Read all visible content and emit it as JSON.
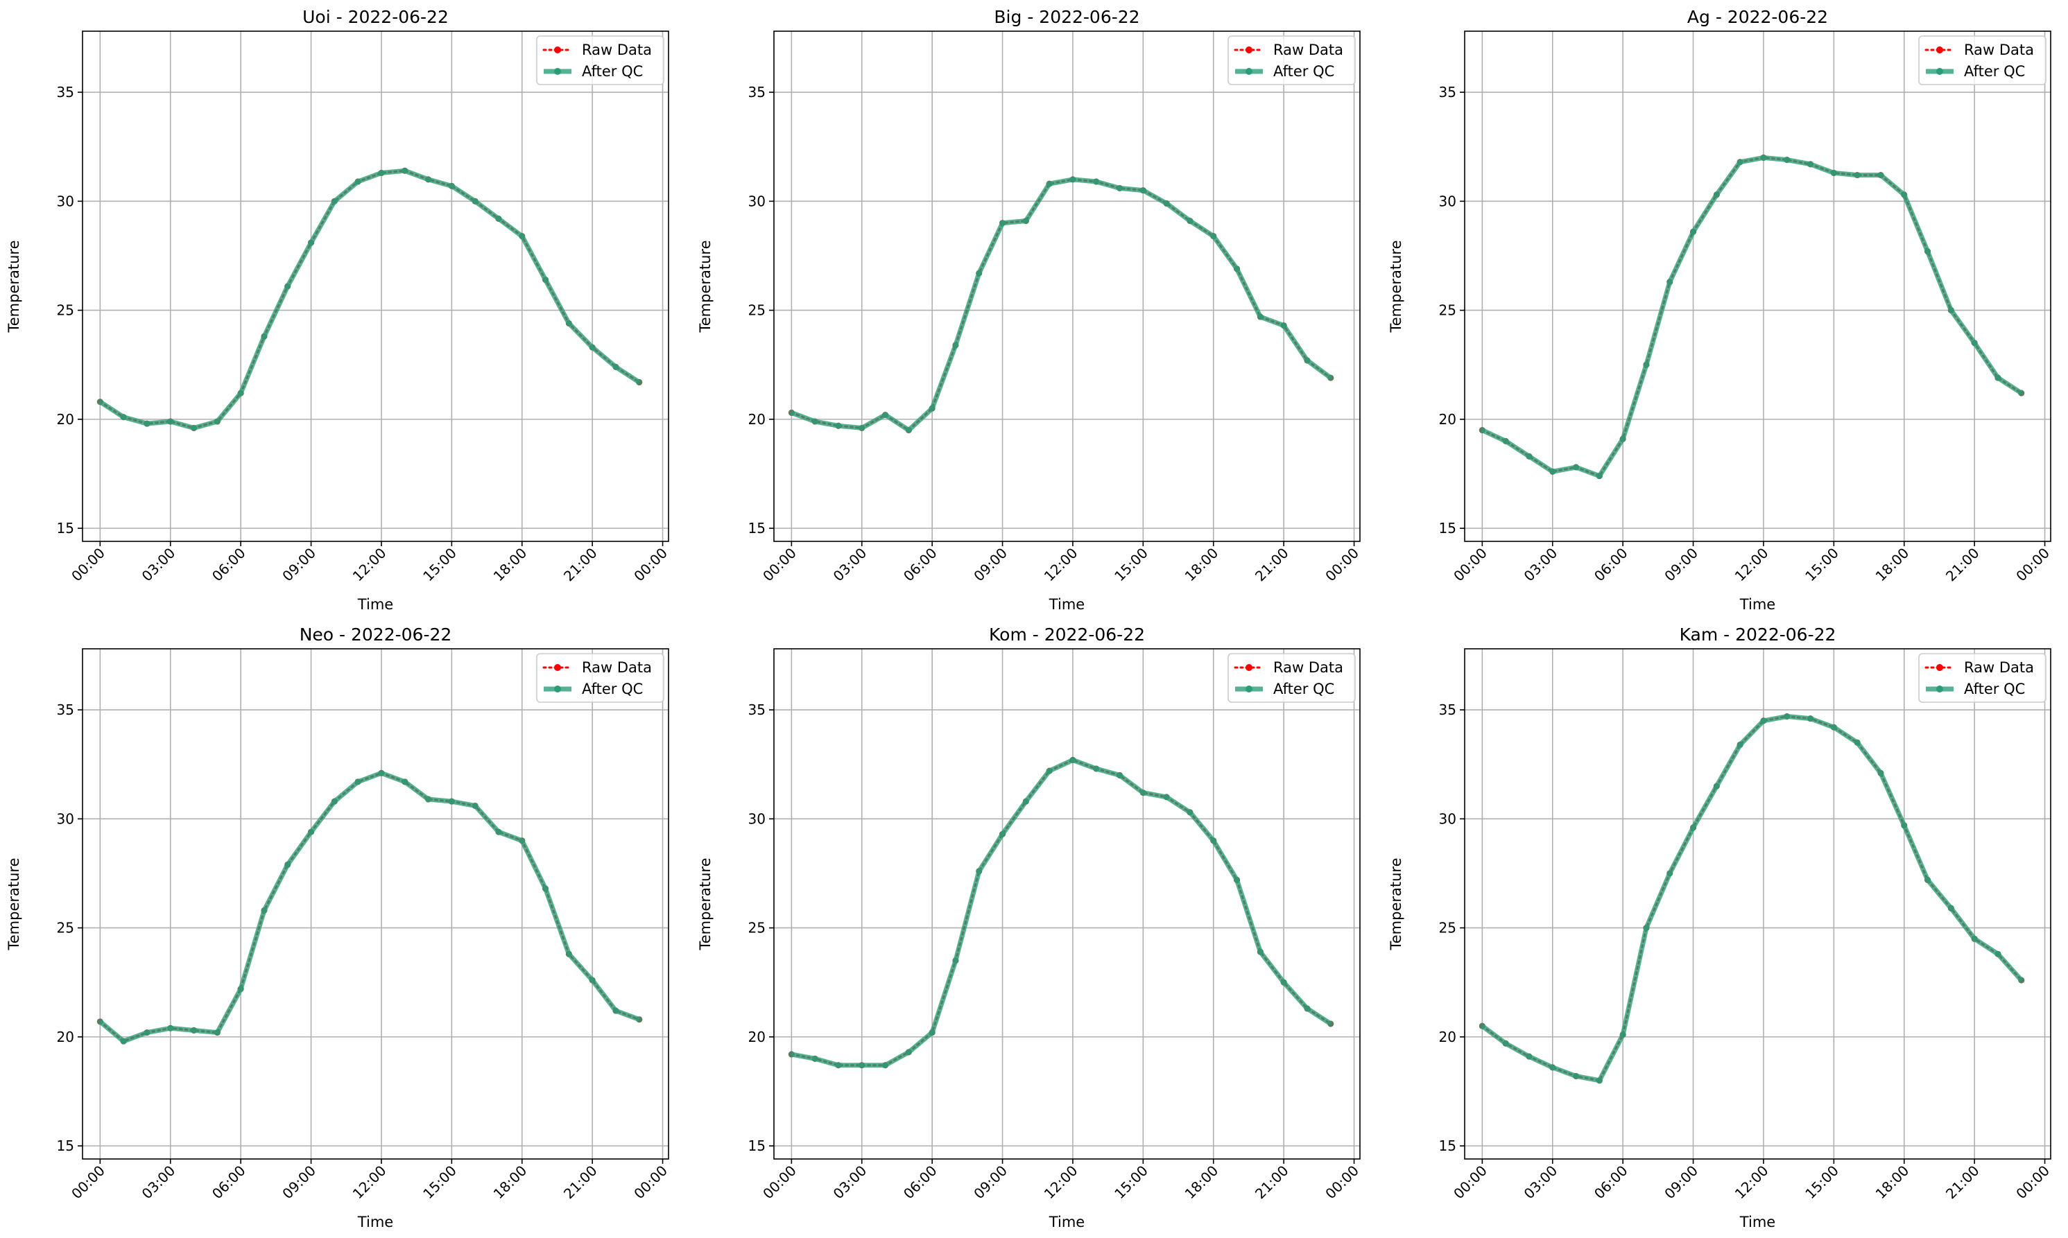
{
  "chart_data": [
    {
      "type": "line",
      "title": "Uoi - 2022-06-22",
      "xlabel": "Time",
      "ylabel": "Temperature",
      "ylim": [
        14.4,
        37.8
      ],
      "yticks": [
        15,
        20,
        25,
        30,
        35
      ],
      "xlim": [
        -0.75,
        24.25
      ],
      "xticks": [
        0,
        3,
        6,
        9,
        12,
        15,
        18,
        21,
        24
      ],
      "xtick_labels": [
        "00:00",
        "03:00",
        "06:00",
        "09:00",
        "12:00",
        "15:00",
        "18:00",
        "21:00",
        "00:00"
      ],
      "grid": true,
      "legend_position": "top-right",
      "x": [
        0,
        1,
        2,
        3,
        4,
        5,
        6,
        7,
        8,
        9,
        10,
        11,
        12,
        13,
        14,
        15,
        16,
        17,
        18,
        19,
        20,
        21,
        22,
        23
      ],
      "series": [
        {
          "name": "Raw Data",
          "color": "#ff0000",
          "style": "dotted-markers",
          "values": [
            20.8,
            20.1,
            19.8,
            19.9,
            19.6,
            19.9,
            21.2,
            23.8,
            26.1,
            28.1,
            30.0,
            30.9,
            31.3,
            31.4,
            31.0,
            30.7,
            30.0,
            29.2,
            28.4,
            26.4,
            24.4,
            23.3,
            22.4,
            21.7
          ]
        },
        {
          "name": "After QC",
          "color": "#2a9d78",
          "style": "solid-markers",
          "values": [
            20.8,
            20.1,
            19.8,
            19.9,
            19.6,
            19.9,
            21.2,
            23.8,
            26.1,
            28.1,
            30.0,
            30.9,
            31.3,
            31.4,
            31.0,
            30.7,
            30.0,
            29.2,
            28.4,
            26.4,
            24.4,
            23.3,
            22.4,
            21.7
          ]
        }
      ]
    },
    {
      "type": "line",
      "title": "Big - 2022-06-22",
      "xlabel": "Time",
      "ylabel": "Temperature",
      "ylim": [
        14.4,
        37.8
      ],
      "yticks": [
        15,
        20,
        25,
        30,
        35
      ],
      "xlim": [
        -0.75,
        24.25
      ],
      "xticks": [
        0,
        3,
        6,
        9,
        12,
        15,
        18,
        21,
        24
      ],
      "xtick_labels": [
        "00:00",
        "03:00",
        "06:00",
        "09:00",
        "12:00",
        "15:00",
        "18:00",
        "21:00",
        "00:00"
      ],
      "grid": true,
      "legend_position": "top-right",
      "x": [
        0,
        1,
        2,
        3,
        4,
        5,
        6,
        7,
        8,
        9,
        10,
        11,
        12,
        13,
        14,
        15,
        16,
        17,
        18,
        19,
        20,
        21,
        22,
        23
      ],
      "series": [
        {
          "name": "Raw Data",
          "color": "#ff0000",
          "style": "dotted-markers",
          "values": [
            20.3,
            19.9,
            19.7,
            19.6,
            20.2,
            19.5,
            20.5,
            23.4,
            26.7,
            29.0,
            29.1,
            30.8,
            31.0,
            30.9,
            30.6,
            30.5,
            29.9,
            29.1,
            28.4,
            26.9,
            24.7,
            24.3,
            22.7,
            21.9
          ]
        },
        {
          "name": "After QC",
          "color": "#2a9d78",
          "style": "solid-markers",
          "values": [
            20.3,
            19.9,
            19.7,
            19.6,
            20.2,
            19.5,
            20.5,
            23.4,
            26.7,
            29.0,
            29.1,
            30.8,
            31.0,
            30.9,
            30.6,
            30.5,
            29.9,
            29.1,
            28.4,
            26.9,
            24.7,
            24.3,
            22.7,
            21.9
          ]
        }
      ]
    },
    {
      "type": "line",
      "title": "Ag - 2022-06-22",
      "xlabel": "Time",
      "ylabel": "Temperature",
      "ylim": [
        14.4,
        37.8
      ],
      "yticks": [
        15,
        20,
        25,
        30,
        35
      ],
      "xlim": [
        -0.75,
        24.25
      ],
      "xticks": [
        0,
        3,
        6,
        9,
        12,
        15,
        18,
        21,
        24
      ],
      "xtick_labels": [
        "00:00",
        "03:00",
        "06:00",
        "09:00",
        "12:00",
        "15:00",
        "18:00",
        "21:00",
        "00:00"
      ],
      "grid": true,
      "legend_position": "top-right",
      "x": [
        0,
        1,
        2,
        3,
        4,
        5,
        6,
        7,
        8,
        9,
        10,
        11,
        12,
        13,
        14,
        15,
        16,
        17,
        18,
        19,
        20,
        21,
        22,
        23
      ],
      "series": [
        {
          "name": "Raw Data",
          "color": "#ff0000",
          "style": "dotted-markers",
          "values": [
            19.5,
            19.0,
            18.3,
            17.6,
            17.8,
            17.4,
            19.1,
            22.5,
            26.3,
            28.6,
            30.3,
            31.8,
            32.0,
            31.9,
            31.7,
            31.3,
            31.2,
            31.2,
            30.3,
            27.7,
            25.0,
            23.5,
            21.9,
            21.2
          ]
        },
        {
          "name": "After QC",
          "color": "#2a9d78",
          "style": "solid-markers",
          "values": [
            19.5,
            19.0,
            18.3,
            17.6,
            17.8,
            17.4,
            19.1,
            22.5,
            26.3,
            28.6,
            30.3,
            31.8,
            32.0,
            31.9,
            31.7,
            31.3,
            31.2,
            31.2,
            30.3,
            27.7,
            25.0,
            23.5,
            21.9,
            21.2
          ]
        }
      ]
    },
    {
      "type": "line",
      "title": "Neo - 2022-06-22",
      "xlabel": "Time",
      "ylabel": "Temperature",
      "ylim": [
        14.4,
        37.8
      ],
      "yticks": [
        15,
        20,
        25,
        30,
        35
      ],
      "xlim": [
        -0.75,
        24.25
      ],
      "xticks": [
        0,
        3,
        6,
        9,
        12,
        15,
        18,
        21,
        24
      ],
      "xtick_labels": [
        "00:00",
        "03:00",
        "06:00",
        "09:00",
        "12:00",
        "15:00",
        "18:00",
        "21:00",
        "00:00"
      ],
      "grid": true,
      "legend_position": "top-right",
      "x": [
        0,
        1,
        2,
        3,
        4,
        5,
        6,
        7,
        8,
        9,
        10,
        11,
        12,
        13,
        14,
        15,
        16,
        17,
        18,
        19,
        20,
        21,
        22,
        23
      ],
      "series": [
        {
          "name": "Raw Data",
          "color": "#ff0000",
          "style": "dotted-markers",
          "values": [
            20.7,
            19.8,
            20.2,
            20.4,
            20.3,
            20.2,
            22.2,
            25.8,
            27.9,
            29.4,
            30.8,
            31.7,
            32.1,
            31.7,
            30.9,
            30.8,
            30.6,
            29.4,
            29.0,
            26.8,
            23.8,
            22.6,
            21.2,
            20.8
          ]
        },
        {
          "name": "After QC",
          "color": "#2a9d78",
          "style": "solid-markers",
          "values": [
            20.7,
            19.8,
            20.2,
            20.4,
            20.3,
            20.2,
            22.2,
            25.8,
            27.9,
            29.4,
            30.8,
            31.7,
            32.1,
            31.7,
            30.9,
            30.8,
            30.6,
            29.4,
            29.0,
            26.8,
            23.8,
            22.6,
            21.2,
            20.8
          ]
        }
      ]
    },
    {
      "type": "line",
      "title": "Kom - 2022-06-22",
      "xlabel": "Time",
      "ylabel": "Temperature",
      "ylim": [
        14.4,
        37.8
      ],
      "yticks": [
        15,
        20,
        25,
        30,
        35
      ],
      "xlim": [
        -0.75,
        24.25
      ],
      "xticks": [
        0,
        3,
        6,
        9,
        12,
        15,
        18,
        21,
        24
      ],
      "xtick_labels": [
        "00:00",
        "03:00",
        "06:00",
        "09:00",
        "12:00",
        "15:00",
        "18:00",
        "21:00",
        "00:00"
      ],
      "grid": true,
      "legend_position": "top-right",
      "x": [
        0,
        1,
        2,
        3,
        4,
        5,
        6,
        7,
        8,
        9,
        10,
        11,
        12,
        13,
        14,
        15,
        16,
        17,
        18,
        19,
        20,
        21,
        22,
        23
      ],
      "series": [
        {
          "name": "Raw Data",
          "color": "#ff0000",
          "style": "dotted-markers",
          "values": [
            19.2,
            19.0,
            18.7,
            18.7,
            18.7,
            19.3,
            20.2,
            23.5,
            27.6,
            29.3,
            30.8,
            32.2,
            32.7,
            32.3,
            32.0,
            31.2,
            31.0,
            30.3,
            29.0,
            27.2,
            23.9,
            22.5,
            21.3,
            20.6
          ]
        },
        {
          "name": "After QC",
          "color": "#2a9d78",
          "style": "solid-markers",
          "values": [
            19.2,
            19.0,
            18.7,
            18.7,
            18.7,
            19.3,
            20.2,
            23.5,
            27.6,
            29.3,
            30.8,
            32.2,
            32.7,
            32.3,
            32.0,
            31.2,
            31.0,
            30.3,
            29.0,
            27.2,
            23.9,
            22.5,
            21.3,
            20.6
          ]
        }
      ]
    },
    {
      "type": "line",
      "title": "Kam - 2022-06-22",
      "xlabel": "Time",
      "ylabel": "Temperature",
      "ylim": [
        14.4,
        37.8
      ],
      "yticks": [
        15,
        20,
        25,
        30,
        35
      ],
      "xlim": [
        -0.75,
        24.25
      ],
      "xticks": [
        0,
        3,
        6,
        9,
        12,
        15,
        18,
        21,
        24
      ],
      "xtick_labels": [
        "00:00",
        "03:00",
        "06:00",
        "09:00",
        "12:00",
        "15:00",
        "18:00",
        "21:00",
        "00:00"
      ],
      "grid": true,
      "legend_position": "top-right",
      "x": [
        0,
        1,
        2,
        3,
        4,
        5,
        6,
        7,
        8,
        9,
        10,
        11,
        12,
        13,
        14,
        15,
        16,
        17,
        18,
        19,
        20,
        21,
        22,
        23
      ],
      "series": [
        {
          "name": "Raw Data",
          "color": "#ff0000",
          "style": "dotted-markers",
          "values": [
            20.5,
            19.7,
            19.1,
            18.6,
            18.2,
            18.0,
            20.1,
            25.0,
            27.5,
            29.6,
            31.5,
            33.4,
            34.5,
            34.7,
            34.6,
            34.2,
            33.5,
            32.1,
            29.7,
            27.2,
            25.9,
            24.5,
            23.8,
            22.6
          ]
        },
        {
          "name": "After QC",
          "color": "#2a9d78",
          "style": "solid-markers",
          "values": [
            20.5,
            19.7,
            19.1,
            18.6,
            18.2,
            18.0,
            20.1,
            25.0,
            27.5,
            29.6,
            31.5,
            33.4,
            34.5,
            34.7,
            34.6,
            34.2,
            33.5,
            32.1,
            29.7,
            27.2,
            25.9,
            24.5,
            23.8,
            22.6
          ]
        }
      ]
    }
  ]
}
